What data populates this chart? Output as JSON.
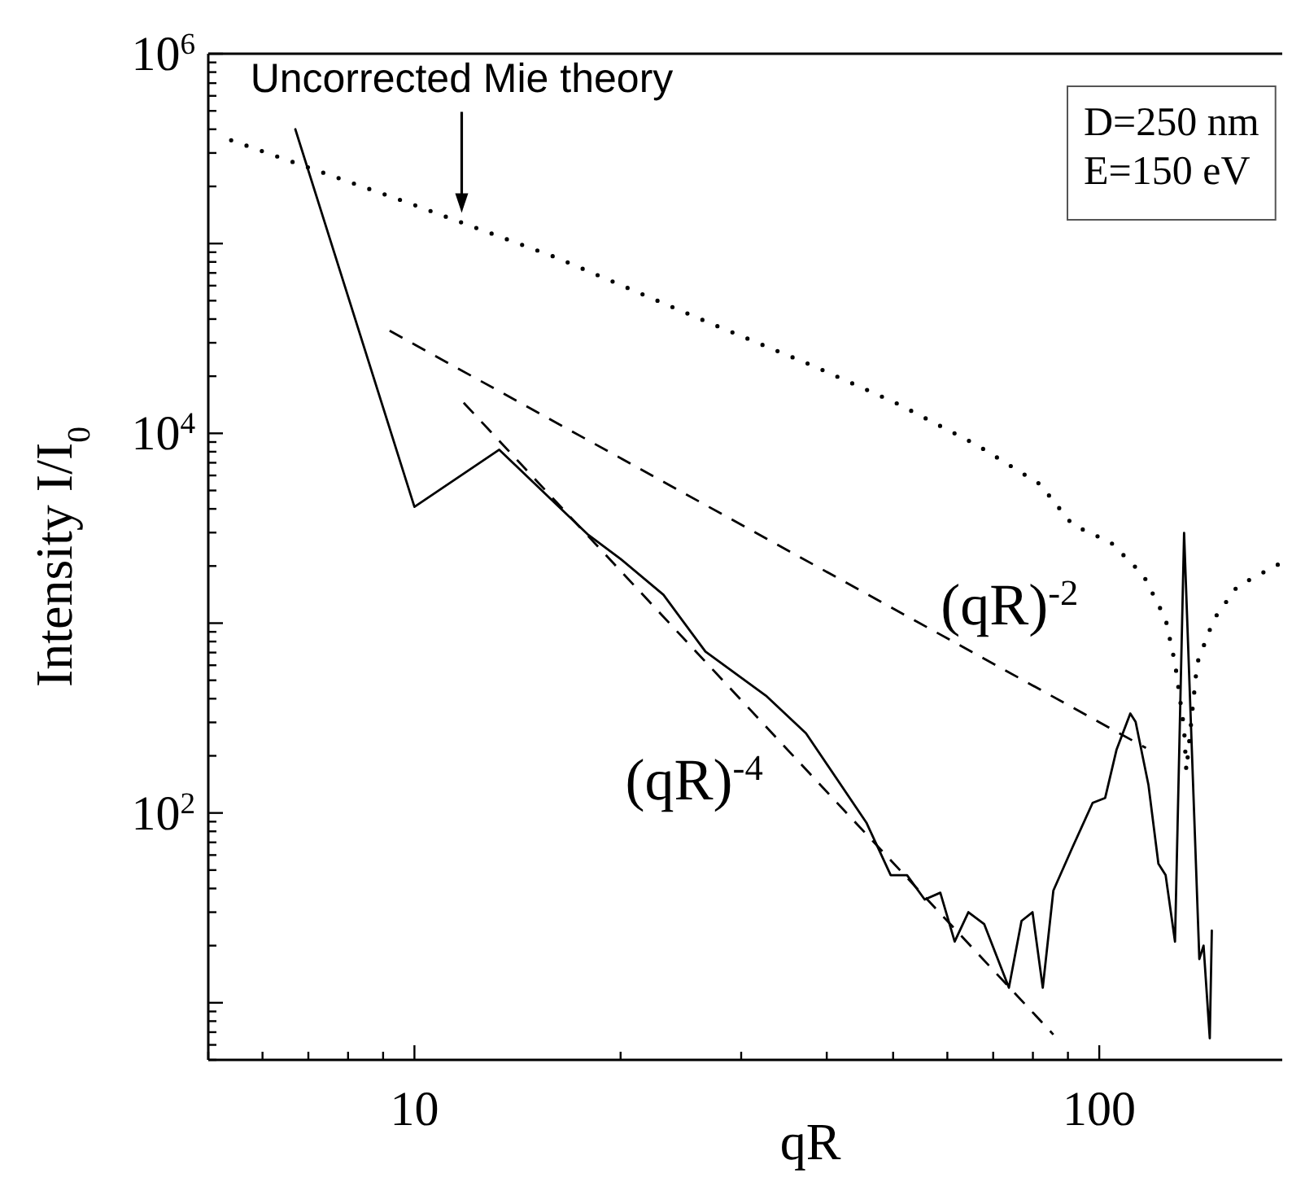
{
  "chart_data": {
    "type": "line",
    "xlabel": "qR",
    "ylabel": "Intensity I/I$_{0}$",
    "log": "xy",
    "legend": false,
    "marker": "none",
    "grid": false,
    "xlim": [
      5,
      185
    ],
    "ylim": [
      5,
      1000000
    ],
    "xticks": [
      {
        "value": 5,
        "label": null
      },
      {
        "value": 6,
        "label": null
      },
      {
        "value": 7,
        "label": null
      },
      {
        "value": 8,
        "label": null
      },
      {
        "value": 9,
        "label": null
      },
      10,
      {
        "value": 20,
        "label": null
      },
      {
        "value": 30,
        "label": null
      },
      {
        "value": 40,
        "label": null
      },
      {
        "value": 50,
        "label": null
      },
      {
        "value": 60,
        "label": null
      },
      {
        "value": 70,
        "label": null
      },
      {
        "value": 80,
        "label": null
      },
      {
        "value": 90,
        "label": null
      },
      100
    ],
    "yticks": [
      {
        "value": 5,
        "label": null
      },
      {
        "value": 6,
        "label": null
      },
      {
        "value": 7,
        "label": null
      },
      {
        "value": 8,
        "label": null
      },
      {
        "value": 9,
        "label": null
      },
      {
        "value": 10,
        "label": null
      },
      {
        "value": 20,
        "label": null
      },
      {
        "value": 30,
        "label": null
      },
      {
        "value": 40,
        "label": null
      },
      {
        "value": 50,
        "label": null
      },
      {
        "value": 60,
        "label": null
      },
      {
        "value": 70,
        "label": null
      },
      {
        "value": 80,
        "label": null
      },
      {
        "value": 90,
        "label": null
      },
      {
        "value": 100,
        "label": "10$^{2}$"
      },
      {
        "value": 200,
        "label": null
      },
      {
        "value": 300,
        "label": null
      },
      {
        "value": 400,
        "label": null
      },
      {
        "value": 500,
        "label": null
      },
      {
        "value": 600,
        "label": null
      },
      {
        "value": 700,
        "label": null
      },
      {
        "value": 800,
        "label": null
      },
      {
        "value": 900,
        "label": null
      },
      {
        "value": 1000,
        "label": null
      },
      {
        "value": 2000,
        "label": null
      },
      {
        "value": 3000,
        "label": null
      },
      {
        "value": 4000,
        "label": null
      },
      {
        "value": 5000,
        "label": null
      },
      {
        "value": 6000,
        "label": null
      },
      {
        "value": 7000,
        "label": null
      },
      {
        "value": 8000,
        "label": null
      },
      {
        "value": 9000,
        "label": null
      },
      {
        "value": 10000,
        "label": "10$^{4}$"
      },
      {
        "value": 20000,
        "label": null
      },
      {
        "value": 30000,
        "label": null
      },
      {
        "value": 40000,
        "label": null
      },
      {
        "value": 50000,
        "label": null
      },
      {
        "value": 60000,
        "label": null
      },
      {
        "value": 70000,
        "label": null
      },
      {
        "value": 80000,
        "label": null
      },
      {
        "value": 90000,
        "label": null
      },
      {
        "value": 100000,
        "label": null
      },
      {
        "value": 200000,
        "label": null
      },
      {
        "value": 300000,
        "label": null
      },
      {
        "value": 400000,
        "label": null
      },
      {
        "value": 500000,
        "label": null
      },
      {
        "value": 600000,
        "label": null
      },
      {
        "value": 700000,
        "label": null
      },
      {
        "value": 800000,
        "label": null
      },
      {
        "value": 900000,
        "label": null
      },
      {
        "value": 1000000,
        "label": "10$^{6}$"
      }
    ],
    "series": [
      {
        "color": "#000000",
        "line_style": "solid",
        "x": [
          6.7,
          10,
          13.3,
          17.9,
          20,
          23.1,
          26.6,
          32.6,
          37.3,
          45.7,
          49.6,
          52.4,
          55.6,
          58.6,
          61.5,
          64.4,
          67.9,
          73.8,
          77,
          79.9,
          82.7,
          85.7,
          91.4,
          97.8,
          102,
          106,
          111,
          113,
          118,
          122,
          125,
          129,
          133,
          140,
          142,
          145,
          146
        ],
        "values": [
          400000,
          4100,
          8200,
          2940,
          2180,
          1410,
          708,
          415,
          263,
          89,
          47,
          47,
          35,
          38,
          21,
          30,
          26,
          12,
          27,
          30,
          12,
          39,
          66,
          113,
          120,
          216,
          334,
          302,
          140,
          54,
          47,
          21,
          2990,
          17,
          20,
          6.5,
          24
        ]
      },
      {
        "name": "Uncorrected Mie theory",
        "color": "#000000",
        "line_style": "dotted",
        "x": [
          5.4,
          6.7,
          9.7,
          16.1,
          26.6,
          38.4,
          50.4,
          66.2,
          81.9,
          91.4,
          104,
          116,
          125,
          129,
          133,
          134,
          137,
          139,
          147,
          159,
          183
        ],
        "values": [
          350000,
          266000,
          166000,
          84500,
          39000,
          22500,
          14500,
          8700,
          5400,
          3300,
          2660,
          1790,
          1050,
          617,
          279,
          167,
          369,
          617,
          1050,
          1560,
          2050
        ]
      },
      {
        "name": "(qR)$^{-2}$",
        "color": "#000000",
        "line_style": "dashed",
        "x": [
          9.2,
          117
        ],
        "values": [
          34700,
          220
        ]
      },
      {
        "name": "(qR)$^{-4}$",
        "color": "#000000",
        "line_style": "dashed",
        "x": [
          11.8,
          85.7
        ],
        "values": [
          14500,
          6.8
        ]
      }
    ],
    "annotations": [
      "D=250 nm",
      "E=150 eV"
    ]
  }
}
